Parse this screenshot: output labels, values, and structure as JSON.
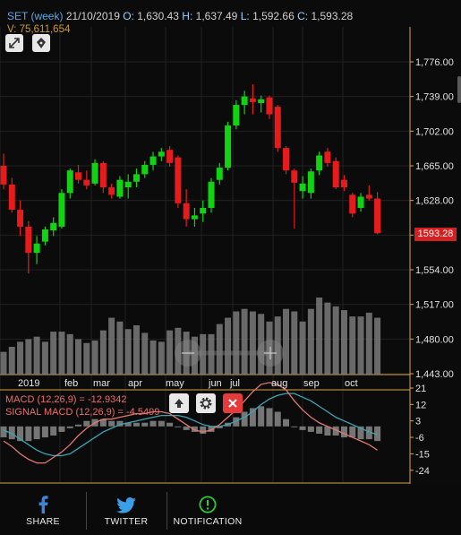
{
  "header": {
    "symbol": "SET (week)",
    "date": "21/10/2019",
    "o_label": "O:",
    "o_value": "1,630.43",
    "h_label": "H:",
    "h_value": "1,637.49",
    "l_label": "L:",
    "l_value": "1,592.66",
    "c_label": "C:",
    "c_value": "1,593.28",
    "v_label": "V:",
    "v_value": "75,611,654"
  },
  "toolbar": {
    "expand_icon": "expand-icon",
    "drawing_icon": "pen-nib-icon"
  },
  "current_price": "1593.28",
  "macd": {
    "macd_label": "MACD (12,26,9) = -12.9342",
    "signal_label": "SIGNAL MACD (12,26,9) = -4.5499",
    "up_icon": "arrow-up-icon",
    "settings_icon": "gear-icon",
    "close_icon": "close-icon"
  },
  "colors": {
    "up": "#11d311",
    "down": "#e61c1c",
    "volume": "#7a7a7a",
    "macd_line": "#e0786f",
    "signal_line": "#3aa6b5",
    "accent": "#d32020"
  },
  "chart_data": [
    {
      "type": "candlestick",
      "price_ticks": [
        "1,776.00",
        "1,739.00",
        "1,702.00",
        "1,665.00",
        "1,628.00",
        "1,591.00",
        "1,554.00",
        "1,517.00",
        "1,480.00",
        "1,443.00"
      ],
      "x_ticks": [
        "2019",
        "feb",
        "mar",
        "apr",
        "may",
        "jun",
        "jul",
        "aug",
        "sep",
        "oct"
      ],
      "ylim": [
        1443,
        1776
      ],
      "candles": [
        [
          1665,
          1678,
          1640,
          1645
        ],
        [
          1645,
          1652,
          1615,
          1618
        ],
        [
          1618,
          1628,
          1590,
          1600
        ],
        [
          1600,
          1606,
          1550,
          1572
        ],
        [
          1572,
          1590,
          1560,
          1582
        ],
        [
          1584,
          1600,
          1580,
          1597
        ],
        [
          1596,
          1610,
          1590,
          1604
        ],
        [
          1600,
          1640,
          1598,
          1636
        ],
        [
          1636,
          1662,
          1630,
          1660
        ],
        [
          1658,
          1666,
          1646,
          1650
        ],
        [
          1650,
          1660,
          1640,
          1644
        ],
        [
          1646,
          1672,
          1644,
          1668
        ],
        [
          1668,
          1670,
          1636,
          1642
        ],
        [
          1642,
          1646,
          1630,
          1634
        ],
        [
          1632,
          1654,
          1630,
          1650
        ],
        [
          1642,
          1656,
          1630,
          1648
        ],
        [
          1648,
          1662,
          1642,
          1656
        ],
        [
          1656,
          1670,
          1652,
          1666
        ],
        [
          1666,
          1680,
          1660,
          1675
        ],
        [
          1675,
          1684,
          1670,
          1680
        ],
        [
          1682,
          1686,
          1664,
          1668
        ],
        [
          1674,
          1676,
          1620,
          1625
        ],
        [
          1625,
          1640,
          1600,
          1608
        ],
        [
          1608,
          1620,
          1600,
          1612
        ],
        [
          1614,
          1628,
          1605,
          1620
        ],
        [
          1620,
          1652,
          1615,
          1648
        ],
        [
          1650,
          1668,
          1645,
          1663
        ],
        [
          1663,
          1712,
          1660,
          1708
        ],
        [
          1708,
          1735,
          1704,
          1730
        ],
        [
          1730,
          1745,
          1720,
          1739
        ],
        [
          1737,
          1752,
          1720,
          1733
        ],
        [
          1732,
          1740,
          1722,
          1736
        ],
        [
          1738,
          1740,
          1715,
          1720
        ],
        [
          1728,
          1730,
          1680,
          1684
        ],
        [
          1684,
          1686,
          1656,
          1660
        ],
        [
          1660,
          1662,
          1598,
          1647
        ],
        [
          1638,
          1654,
          1630,
          1646
        ],
        [
          1636,
          1662,
          1630,
          1659
        ],
        [
          1660,
          1680,
          1655,
          1676
        ],
        [
          1680,
          1684,
          1664,
          1668
        ],
        [
          1670,
          1674,
          1640,
          1642
        ],
        [
          1650,
          1655,
          1638,
          1642
        ],
        [
          1634,
          1636,
          1610,
          1614
        ],
        [
          1620,
          1636,
          1616,
          1632
        ],
        [
          1634,
          1644,
          1628,
          1630
        ],
        [
          1630,
          1637,
          1592,
          1593
        ]
      ],
      "volume": [
        18,
        22,
        26,
        28,
        30,
        26,
        34,
        34,
        32,
        28,
        25,
        27,
        35,
        45,
        42,
        36,
        39,
        33,
        27,
        26,
        35,
        37,
        34,
        30,
        32,
        32,
        40,
        45,
        50,
        52,
        50,
        48,
        42,
        46,
        52,
        50,
        42,
        52,
        61,
        57,
        54,
        51,
        46,
        46,
        49,
        45
      ]
    },
    {
      "type": "bar",
      "name": "MACD",
      "y_ticks": [
        "21",
        "12",
        "3",
        "-6",
        "-15",
        "-24"
      ],
      "ylim": [
        -30,
        21
      ],
      "histogram": [
        -6,
        -7,
        -8,
        -8,
        -7,
        -6,
        -5,
        -3,
        -1,
        1,
        3,
        4,
        4,
        3,
        3,
        2,
        2,
        2,
        3,
        3,
        2,
        0,
        -2,
        -3,
        -4,
        -3,
        -1,
        2,
        5,
        8,
        10,
        11,
        10,
        8,
        4,
        0,
        -2,
        -3,
        -4,
        -5,
        -5,
        -6,
        -6,
        -7,
        -7,
        -8
      ],
      "macd": [
        -8,
        -11,
        -15,
        -18,
        -20,
        -20,
        -17,
        -14,
        -10,
        -5,
        -1,
        2,
        4,
        4,
        5,
        6,
        7,
        7,
        8,
        8,
        7,
        4,
        1,
        -2,
        -3,
        -2,
        1,
        5,
        9,
        14,
        19,
        23,
        24,
        23,
        20,
        14,
        9,
        5,
        2,
        0,
        -2,
        -4,
        -6,
        -8,
        -10,
        -13
      ],
      "signal": [
        -2,
        -4,
        -7,
        -10,
        -13,
        -15,
        -16,
        -16,
        -15,
        -12,
        -9,
        -6,
        -3,
        -1,
        1,
        2,
        3,
        4,
        5,
        6,
        6,
        6,
        5,
        3,
        1,
        0,
        0,
        1,
        3,
        5,
        8,
        12,
        15,
        17,
        18,
        18,
        16,
        14,
        11,
        8,
        5,
        3,
        1,
        -1,
        -3,
        -4.5
      ]
    }
  ],
  "nav": {
    "share_label": "SHARE",
    "twitter_label": "TWITTER",
    "notification_label": "NOTIFICATION"
  }
}
